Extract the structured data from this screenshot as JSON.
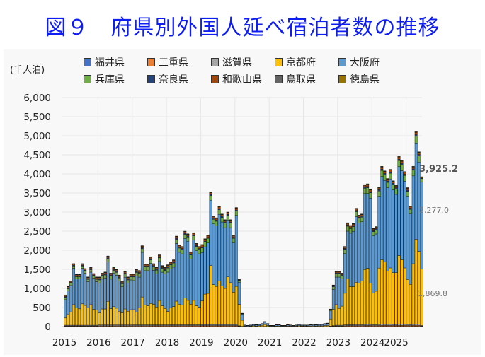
{
  "title": "図９　府県別外国人延べ宿泊者数の推移",
  "chart_data": {
    "type": "bar",
    "stacked": true,
    "title": "図９　府県別外国人延べ宿泊者数の推移",
    "ylabel": "(千人泊)",
    "xlabel": "",
    "ylim": [
      0,
      6000
    ],
    "yticks": [
      0,
      500,
      1000,
      1500,
      2000,
      2500,
      3000,
      3500,
      4000,
      4500,
      5000,
      5500,
      6000
    ],
    "ytick_labels": [
      "0",
      "500",
      "1,000",
      "1,500",
      "2,000",
      "2,500",
      "3,000",
      "3,500",
      "4,000",
      "4,500",
      "5,000",
      "5,500",
      "6,000"
    ],
    "xtick_labels": [
      "2015",
      "2016",
      "2017",
      "2018",
      "2019",
      "2020",
      "2021",
      "2022",
      "2023",
      "2024",
      "2025"
    ],
    "x_start": "2015-01",
    "x_frequency": "monthly",
    "grid": true,
    "legend_position": "top",
    "legend": [
      "福井県",
      "三重県",
      "滋賀県",
      "京都府",
      "大阪府",
      "兵庫県",
      "奈良県",
      "和歌山県",
      "鳥取県",
      "徳島県"
    ],
    "annotations": [
      "3,925.2",
      "2,277.0",
      "1,869.8"
    ],
    "stack_order": [
      "fukui",
      "mie",
      "shiga",
      "kyoto",
      "osaka",
      "hyogo",
      "nara",
      "wakayama",
      "tottori",
      "tokushima"
    ],
    "colors": {
      "fukui": "#4472c4",
      "mie": "#ed7d31",
      "shiga": "#a5a5a5",
      "kyoto": "#ffc000",
      "osaka": "#5b9bd5",
      "hyogo": "#70ad47",
      "nara": "#264478",
      "wakayama": "#9e480e",
      "tottori": "#636363",
      "tokushima": "#997300"
    },
    "minor_shares": {
      "fukui": 0.04,
      "mie": 0.14,
      "shiga": 0.18,
      "nara": 0.2,
      "wakayama": 0.32,
      "tottori": 0.04,
      "tokushima": 0.08
    },
    "series": {
      "kyoto": [
        190,
        280,
        350,
        540,
        450,
        430,
        560,
        520,
        460,
        540,
        420,
        400,
        320,
        420,
        420,
        620,
        430,
        480,
        440,
        360,
        320,
        420,
        360,
        400,
        400,
        340,
        450,
        730,
        520,
        500,
        560,
        540,
        470,
        640,
        500,
        430,
        350,
        450,
        480,
        620,
        540,
        520,
        700,
        640,
        540,
        640,
        500,
        460,
        620,
        800,
        820,
        1550,
        1050,
        1000,
        1150,
        1020,
        950,
        1250,
        1100,
        850,
        1000,
        560,
        160,
        10,
        5,
        10,
        20,
        15,
        20,
        30,
        50,
        25,
        10,
        10,
        15,
        15,
        10,
        10,
        15,
        12,
        10,
        12,
        20,
        12,
        12,
        12,
        15,
        18,
        15,
        18,
        18,
        25,
        28,
        190,
        430,
        540,
        440,
        500,
        830,
        1200,
        1000,
        1000,
        1110,
        1090,
        1150,
        1440,
        1470,
        1090,
        830,
        880,
        1480,
        1690,
        1640,
        1400,
        1480,
        1360,
        1360,
        1800,
        1690,
        1480,
        1180,
        1055,
        1590,
        2220,
        1910,
        1480
      ],
      "osaka": [
        480,
        615,
        690,
        950,
        760,
        780,
        930,
        840,
        680,
        850,
        810,
        740,
        780,
        780,
        810,
        1030,
        770,
        870,
        860,
        790,
        680,
        830,
        740,
        780,
        760,
        940,
        800,
        1170,
        900,
        920,
        1050,
        890,
        870,
        1020,
        880,
        900,
        1030,
        1010,
        1030,
        1510,
        1360,
        1340,
        1560,
        1550,
        1180,
        1580,
        1440,
        1400,
        1270,
        1240,
        1320,
        1710,
        1590,
        1590,
        1740,
        1670,
        1590,
        1490,
        1440,
        1290,
        1860,
        580,
        155,
        23,
        20,
        23,
        30,
        27,
        30,
        37,
        60,
        42,
        15,
        15,
        30,
        30,
        15,
        15,
        30,
        23,
        15,
        23,
        35,
        23,
        23,
        23,
        28,
        34,
        28,
        34,
        34,
        45,
        50,
        210,
        520,
        720,
        820,
        710,
        1040,
        1250,
        1400,
        1450,
        1720,
        1580,
        1550,
        1990,
        1960,
        2220,
        1500,
        1500,
        1880,
        2180,
        2130,
        2180,
        2330,
        2170,
        2050,
        2330,
        2330,
        2270,
        2180,
        1845,
        2300,
        2520,
        2340,
        2277
      ],
      "hyogo": [
        60,
        60,
        60,
        60,
        60,
        60,
        60,
        60,
        60,
        60,
        60,
        60,
        80,
        80,
        80,
        80,
        80,
        80,
        80,
        80,
        80,
        80,
        80,
        80,
        95,
        95,
        95,
        95,
        95,
        95,
        95,
        95,
        95,
        95,
        95,
        95,
        110,
        110,
        110,
        110,
        110,
        110,
        110,
        110,
        110,
        110,
        110,
        110,
        120,
        120,
        120,
        120,
        120,
        120,
        120,
        120,
        120,
        120,
        120,
        120,
        110,
        50,
        15,
        3,
        2,
        3,
        4,
        3,
        4,
        5,
        8,
        5,
        2,
        2,
        2,
        2,
        2,
        2,
        2,
        2,
        2,
        2,
        2,
        2,
        2,
        2,
        3,
        3,
        3,
        3,
        3,
        4,
        5,
        30,
        70,
        90,
        90,
        90,
        110,
        130,
        120,
        120,
        130,
        120,
        120,
        140,
        150,
        140,
        110,
        110,
        140,
        160,
        150,
        140,
        150,
        140,
        140,
        160,
        160,
        150,
        130,
        120,
        150,
        180,
        160,
        90
      ],
      "minor_total": [
        100,
        100,
        100,
        100,
        100,
        100,
        100,
        100,
        100,
        100,
        100,
        100,
        120,
        120,
        120,
        120,
        120,
        120,
        120,
        120,
        120,
        120,
        120,
        120,
        125,
        125,
        125,
        125,
        125,
        125,
        125,
        125,
        125,
        125,
        125,
        125,
        130,
        130,
        130,
        130,
        130,
        130,
        130,
        130,
        130,
        130,
        130,
        130,
        140,
        140,
        140,
        140,
        140,
        140,
        140,
        140,
        140,
        140,
        140,
        140,
        150,
        60,
        20,
        4,
        3,
        4,
        6,
        5,
        6,
        8,
        12,
        8,
        3,
        3,
        3,
        3,
        3,
        3,
        3,
        3,
        3,
        3,
        3,
        3,
        3,
        3,
        4,
        5,
        4,
        5,
        5,
        6,
        7,
        30,
        70,
        100,
        100,
        100,
        120,
        140,
        130,
        130,
        140,
        130,
        130,
        150,
        160,
        150,
        130,
        130,
        150,
        170,
        160,
        160,
        160,
        150,
        150,
        170,
        170,
        160,
        150,
        140,
        160,
        190,
        170,
        78.2
      ]
    }
  }
}
